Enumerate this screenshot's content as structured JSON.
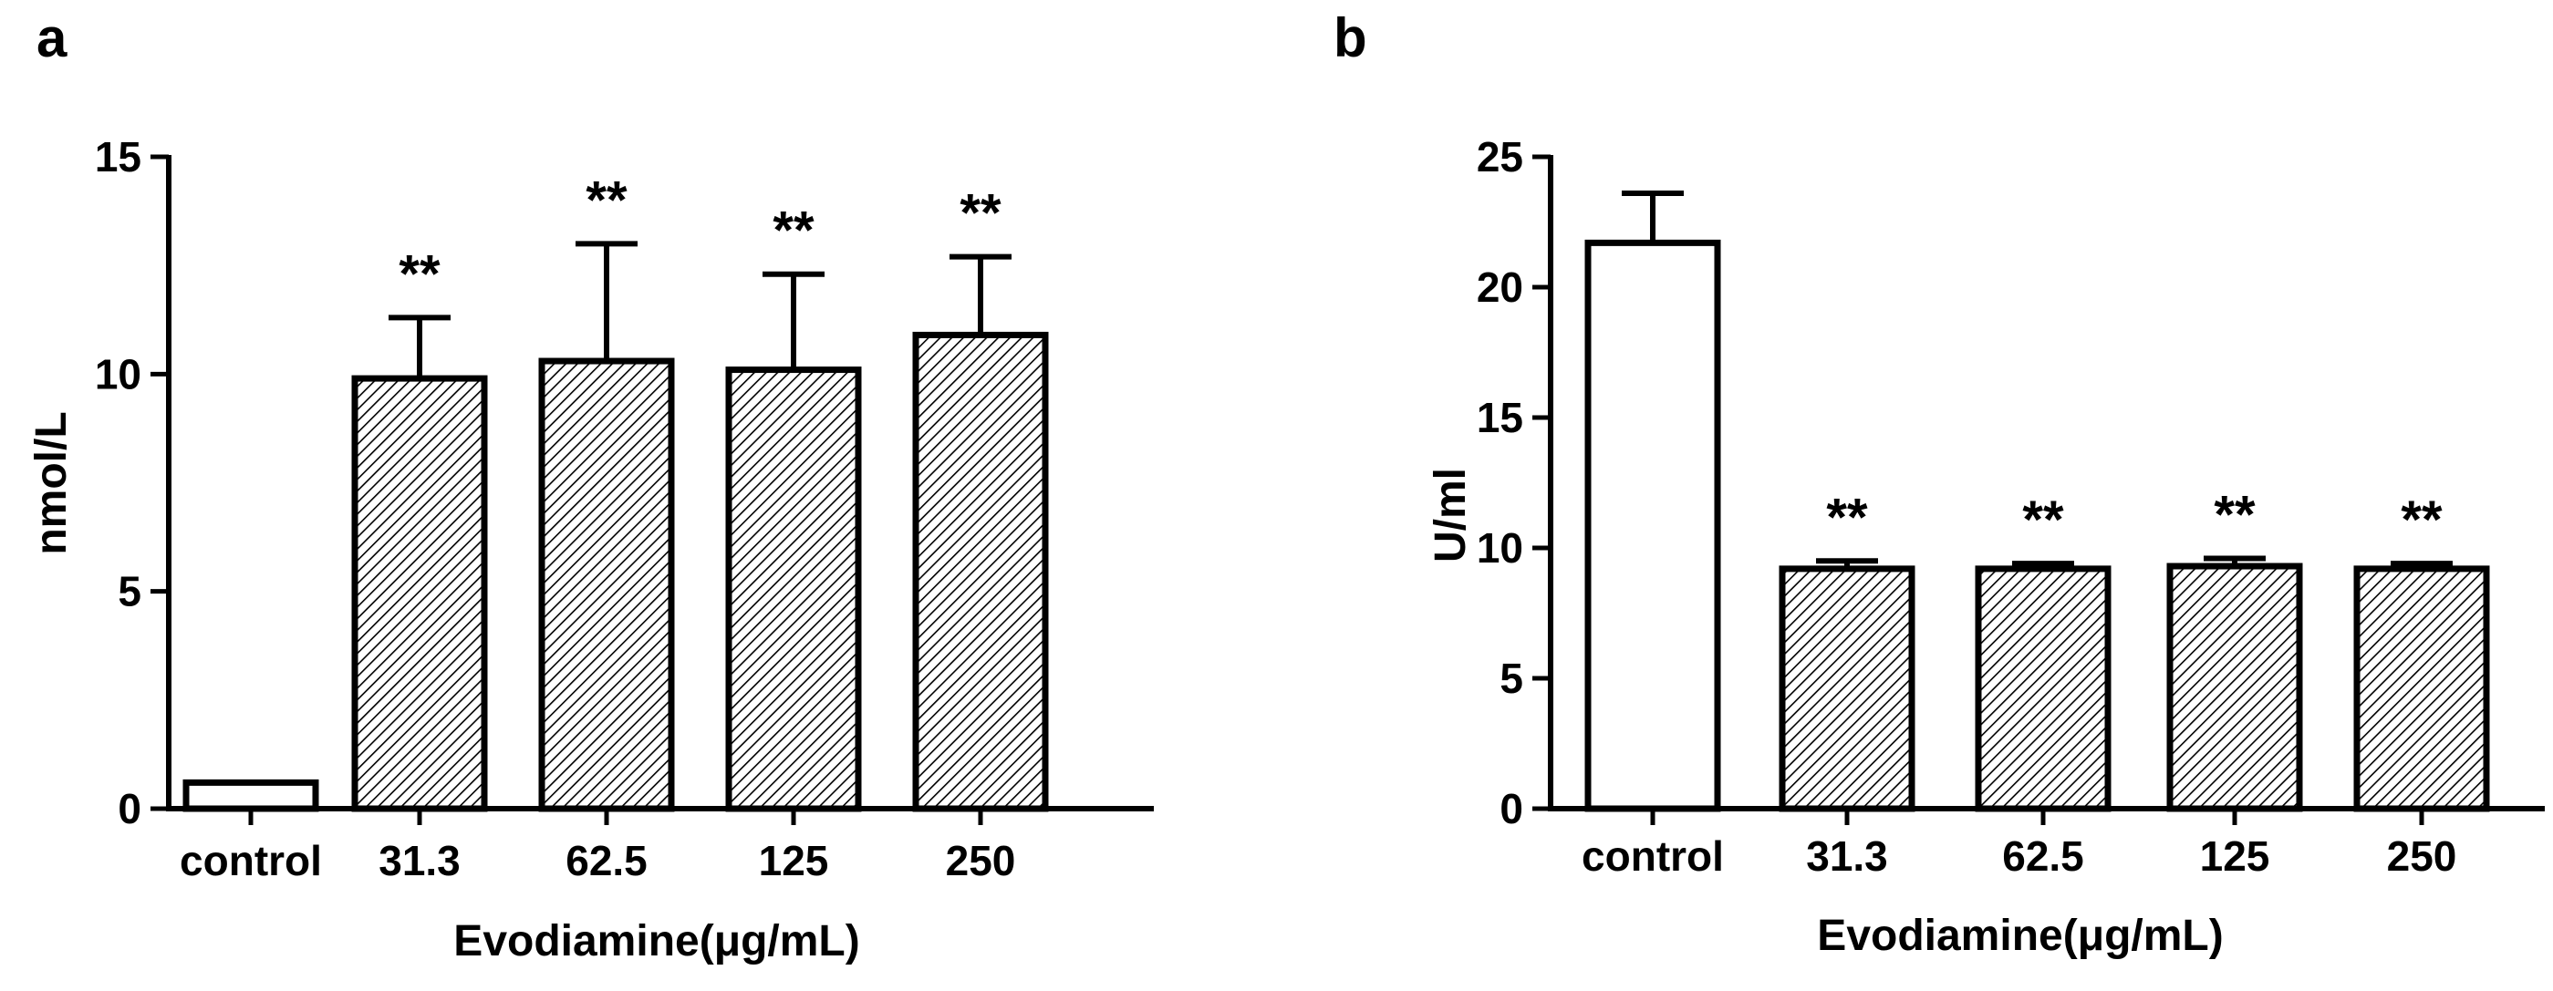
{
  "chart_data": [
    {
      "panel": "a",
      "type": "bar",
      "categories": [
        "control",
        "31.3",
        "62.5",
        "125",
        "250"
      ],
      "values": [
        0.6,
        9.9,
        10.3,
        10.1,
        10.9
      ],
      "errors": [
        0,
        1.4,
        2.7,
        2.2,
        1.8
      ],
      "fills": [
        "open",
        "hatched",
        "hatched",
        "hatched",
        "hatched"
      ],
      "significance": [
        "",
        "**",
        "**",
        "**",
        "**"
      ],
      "xlabel": "Evodiamine(μg/mL)",
      "ylabel": "nmol/L",
      "ylim": [
        0,
        15
      ],
      "yticks": [
        0,
        5,
        10,
        15
      ],
      "grid": false
    },
    {
      "panel": "b",
      "type": "bar",
      "categories": [
        "control",
        "31.3",
        "62.5",
        "125",
        "250"
      ],
      "values": [
        21.7,
        9.2,
        9.2,
        9.3,
        9.2
      ],
      "errors": [
        1.9,
        0.3,
        0.2,
        0.3,
        0.2
      ],
      "fills": [
        "open",
        "hatched",
        "hatched",
        "hatched",
        "hatched"
      ],
      "significance": [
        "",
        "**",
        "**",
        "**",
        "**"
      ],
      "xlabel": "Evodiamine(μg/mL)",
      "ylabel": "U/ml",
      "ylim": [
        0,
        25
      ],
      "yticks": [
        0,
        5,
        10,
        15,
        20,
        25
      ],
      "grid": false
    }
  ],
  "colors": {
    "stroke": "#000000",
    "bar_open": "#ffffff",
    "hatch": "#000000"
  }
}
